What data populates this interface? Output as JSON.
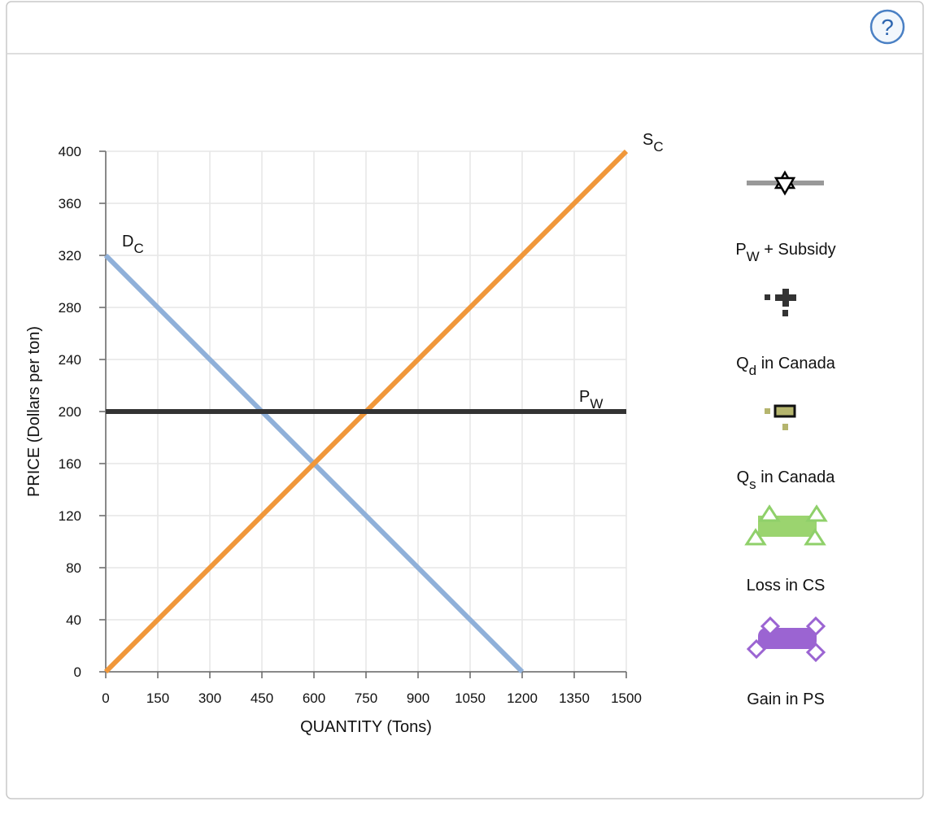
{
  "help": "?",
  "chart_data": {
    "type": "line",
    "x_label": "QUANTITY (Tons)",
    "y_label": "PRICE (Dollars per ton)",
    "xlim": [
      0,
      1500
    ],
    "ylim": [
      0,
      400
    ],
    "xticks": [
      0,
      150,
      300,
      450,
      600,
      750,
      900,
      1050,
      1200,
      1350,
      1500
    ],
    "yticks": [
      0,
      40,
      80,
      120,
      160,
      200,
      240,
      280,
      320,
      360,
      400
    ],
    "grid": true,
    "series": [
      {
        "name": "D",
        "subscript": "C",
        "color": "#8fb0d9",
        "x": [
          0,
          1200
        ],
        "values": [
          320,
          0
        ]
      },
      {
        "name": "S",
        "subscript": "C",
        "color": "#f0973a",
        "x": [
          0,
          1500
        ],
        "values": [
          0,
          400
        ]
      },
      {
        "name": "P",
        "subscript": "W",
        "color": "#333333",
        "x": [
          0,
          1500
        ],
        "values": [
          200,
          200
        ]
      }
    ],
    "tools": [
      {
        "label": "P",
        "subscript": "W",
        "rest": " + Subsidy"
      },
      {
        "label": "Q",
        "subscript": "d",
        "rest": " in Canada"
      },
      {
        "label": "Q",
        "subscript": "s",
        "rest": " in Canada"
      },
      {
        "label": "Loss in CS"
      },
      {
        "label": "Gain in PS"
      }
    ]
  }
}
